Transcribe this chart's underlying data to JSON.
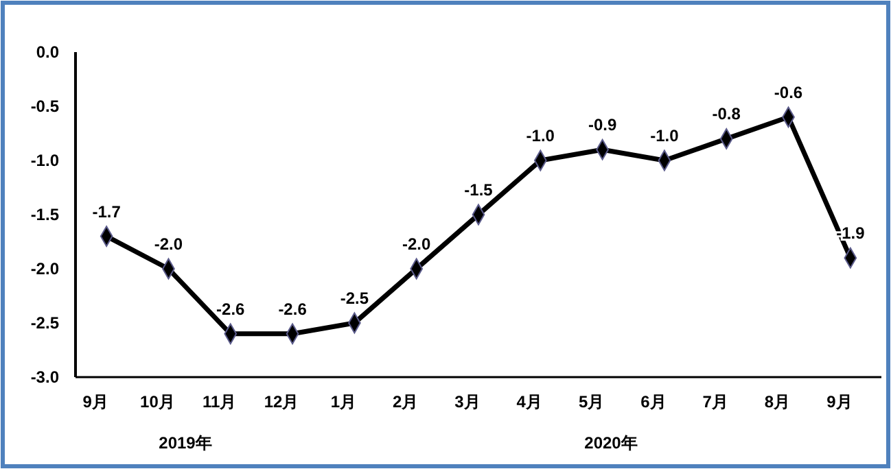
{
  "chart_data": {
    "type": "line",
    "categories": [
      "9月",
      "10月",
      "11月",
      "12月",
      "1月",
      "2月",
      "3月",
      "4月",
      "5月",
      "6月",
      "7月",
      "8月",
      "9月"
    ],
    "series": [
      {
        "color": "#000000",
        "values": [
          -1.7,
          -2.0,
          -2.6,
          -2.6,
          -2.5,
          -2.0,
          -1.5,
          -1.0,
          -0.9,
          -1.0,
          -0.8,
          -0.6,
          -1.9
        ]
      }
    ],
    "ylim": [
      -3.0,
      0.0
    ],
    "yticks": [
      {
        "value": -3,
        "label": "-3.0"
      },
      {
        "value": -2.5,
        "label": "-2.5"
      },
      {
        "value": -2,
        "label": "-2.0"
      },
      {
        "value": -1.5,
        "label": "-1.5"
      },
      {
        "value": -1,
        "label": "-1.0"
      },
      {
        "value": -0.5,
        "label": "-0.5"
      },
      {
        "value": 0,
        "label": "0.0"
      }
    ],
    "marker": "diamond",
    "line_style": "solid",
    "grid": false,
    "value_labels": [
      "-1.7",
      "-2.0",
      "-2.6",
      "-2.6",
      "-2.5",
      "-2.0",
      "-1.5",
      "-1.0",
      "-0.9",
      "-1.0",
      "-0.8",
      "-0.6",
      "-1.9"
    ],
    "annotations": [
      "2019年",
      "2020年"
    ]
  }
}
